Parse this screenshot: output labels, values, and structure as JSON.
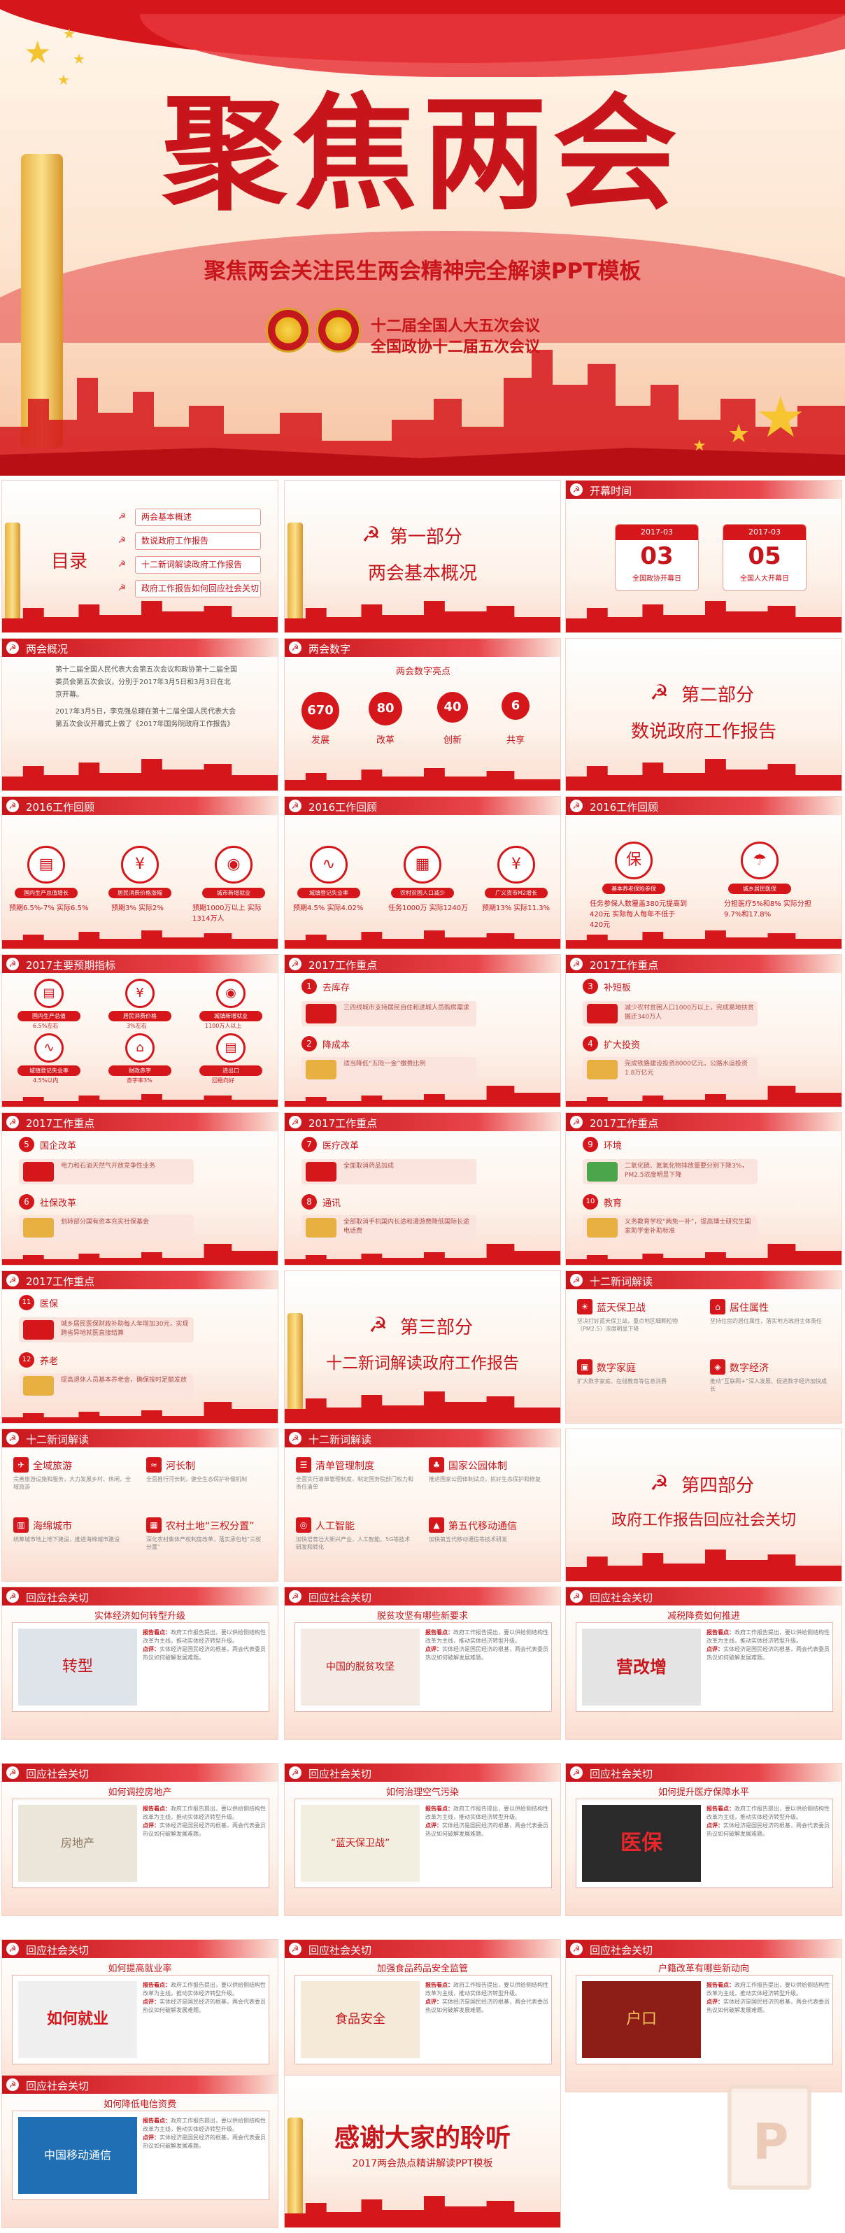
{
  "cover": {
    "title": "聚焦两会",
    "subtitle": "聚焦两会关注民生两会精神完全解读PPT模板",
    "meeting_1": "十二届全国人大五次会议",
    "meeting_2": "全国政协十二届五次会议"
  },
  "toc": {
    "title": "目录",
    "items": [
      "两会基本概述",
      "数说政府工作报告",
      "十二新词解读政府工作报告",
      "政府工作报告如何回应社会关切"
    ]
  },
  "part1": {
    "part": "第一部分",
    "name": "两会基本概况"
  },
  "opening": {
    "header": "开幕时间",
    "cal1": {
      "top": "2017-03",
      "num": "03",
      "label": "全国政协开幕日"
    },
    "cal2": {
      "top": "2017-03",
      "num": "05",
      "label": "全国人大开幕日"
    }
  },
  "overview": {
    "header": "两会概况",
    "text_1": "第十二届全国人民代表大会第五次会议和政协第十二届全国委员会第五次会议，分别于2017年3月5日和3月3日在北京开幕。",
    "text_2": "2017年3月5日，李克强总理在第十二届全国人民代表大会第五次会议开幕式上做了《2017年国务院政府工作报告》"
  },
  "numbers": {
    "header": "两会数字",
    "heading": "两会数字亮点",
    "items": [
      {
        "num": "670",
        "label": "发展"
      },
      {
        "num": "80",
        "label": "改革"
      },
      {
        "num": "40",
        "label": "创新"
      },
      {
        "num": "6",
        "label": "共享"
      }
    ]
  },
  "part2": {
    "part": "第二部分",
    "name": "数说政府工作报告"
  },
  "review1": {
    "header": "2016工作回顾",
    "items": [
      {
        "icon": "▤",
        "pill": "国内生产总值增长",
        "stat": "预期6.5%-7% 实际6.5%"
      },
      {
        "icon": "¥",
        "pill": "居民消费价格涨幅",
        "stat": "预期3% 实际2%"
      },
      {
        "icon": "◉",
        "pill": "城市新增就业",
        "stat": "预期1000万以上 实际1314万人"
      }
    ]
  },
  "review2": {
    "header": "2016工作回顾",
    "items": [
      {
        "icon": "∿",
        "pill": "城镇登记失业率",
        "stat": "预期4.5% 实际4.02%"
      },
      {
        "icon": "▦",
        "pill": "农村贫困人口减少",
        "stat": "任务1000万 实际1240万"
      },
      {
        "icon": "¥",
        "pill": "广义货币M2增长",
        "stat": "预期13% 实际11.3%"
      }
    ]
  },
  "review3": {
    "header": "2016工作回顾",
    "items": [
      {
        "icon": "保",
        "pill": "基本养老保险参保",
        "stat": "任务参保人数覆盖380元提高到420元 实际每人每年不低于420元"
      },
      {
        "icon": "☂",
        "pill": "城乡居民医保",
        "stat": "分担医疗5%和8% 实际分担9.7%和17.8%"
      }
    ]
  },
  "targets": {
    "header": "2017主要预期指标",
    "items": [
      {
        "icon": "▤",
        "pill": "国内生产总值",
        "stat": "6.5%左右"
      },
      {
        "icon": "¥",
        "pill": "居民消费价格",
        "stat": "3%左右"
      },
      {
        "icon": "◉",
        "pill": "城镇新增就业",
        "stat": "1100万人以上"
      },
      {
        "icon": "∿",
        "pill": "城镇登记失业率",
        "stat": "4.5%以内"
      },
      {
        "icon": "⌂",
        "pill": "财政赤字",
        "stat": "赤字率3%"
      },
      {
        "icon": "▤",
        "pill": "进出口",
        "stat": "回稳向好"
      }
    ]
  },
  "key1": {
    "header": "2017工作重点",
    "items": [
      {
        "num": "1",
        "label": "去库存",
        "text": "三四线城市支持居民自住和进城人员购房需求"
      },
      {
        "num": "2",
        "label": "降成本",
        "text": "适当降低“五险一金”缴费比例"
      }
    ]
  },
  "key2": {
    "header": "2017工作重点",
    "items": [
      {
        "num": "3",
        "label": "补短板",
        "text": "减少农村贫困人口1000万以上，完成易地扶贫搬迁340万人"
      },
      {
        "num": "4",
        "label": "扩大投资",
        "text": "完成铁路建设投资8000亿元，公路水运投资1.8万亿元"
      }
    ]
  },
  "key3": {
    "header": "2017工作重点",
    "items": [
      {
        "num": "5",
        "label": "国企改革",
        "text": "电力和石油天然气开放竞争性业务"
      },
      {
        "num": "6",
        "label": "社保改革",
        "text": "划转部分国有资本充实社保基金"
      }
    ]
  },
  "key4": {
    "header": "2017工作重点",
    "items": [
      {
        "num": "7",
        "label": "医疗改革",
        "text": "全面取消药品加成"
      },
      {
        "num": "8",
        "label": "通讯",
        "text": "全部取消手机国内长途和漫游费降低国际长途电话费"
      }
    ]
  },
  "key5": {
    "header": "2017工作重点",
    "items": [
      {
        "num": "9",
        "label": "环境",
        "text": "二氧化硫、氮氧化物排放量要分别下降3%，PM2.5浓度明显下降"
      },
      {
        "num": "10",
        "label": "教育",
        "text": "义务教育学校“两免一补”，提高博士研究生国家助学金补助标准"
      }
    ]
  },
  "key6": {
    "header": "2017工作重点",
    "items": [
      {
        "num": "11",
        "label": "医保",
        "text": "城乡居民医保财政补助每人年增加30元，实现跨省异地就医直接结算"
      },
      {
        "num": "12",
        "label": "养老",
        "text": "提高退休人员基本养老金，确保按时足额发放"
      }
    ]
  },
  "part3": {
    "part": "第三部分",
    "name": "十二新词解读政府工作报告"
  },
  "words1": {
    "header": "十二新词解读",
    "items": [
      {
        "label": "蓝天保卫战",
        "text": "坚决打好蓝天保卫战，重点地区细颗粒物（PM2.5）浓度明显下降"
      },
      {
        "label": "居住属性",
        "text": "坚持住房的居住属性，落实地方政府主体责任"
      },
      {
        "label": "数字家庭",
        "text": "扩大数字家庭、在线教育等信息消费"
      },
      {
        "label": "数字经济",
        "text": "推动“互联网+”深入发展、促进数字经济加快成长"
      }
    ]
  },
  "words2": {
    "header": "十二新词解读",
    "items": [
      {
        "label": "全域旅游",
        "text": "完善旅游设施和服务，大力发展乡村、休闲、全域旅游"
      },
      {
        "label": "河长制",
        "text": "全面推行河长制，健全生态保护补偿机制"
      },
      {
        "label": "海绵城市",
        "text": "统筹城市地上地下建设，推进海绵城市建设"
      },
      {
        "label": "农村土地“三权分置”",
        "text": "深化农村集体产权制度改革，落实承包地“三权分置”"
      }
    ]
  },
  "words3": {
    "header": "十二新词解读",
    "items": [
      {
        "label": "清单管理制度",
        "text": "全面实行清单管理制度，制定国务院部门权力和责任清单"
      },
      {
        "label": "国家公园体制",
        "text": "推进国家公园体制试点，抓好生态保护和修复"
      },
      {
        "label": "人工智能",
        "text": "加快培育壮大新兴产业，人工智能、5G等技术研发和转化"
      },
      {
        "label": "第五代移动通信",
        "text": "加快第五代移动通信等技术研发"
      }
    ]
  },
  "part4": {
    "part": "第四部分",
    "name": "政府工作报告回应社会关切"
  },
  "concerns": [
    {
      "header": "回应社会关切",
      "heading": "实体经济如何转型升级",
      "picture": "转型"
    },
    {
      "header": "回应社会关切",
      "heading": "脱贫攻坚有哪些新要求",
      "picture": "中国的脱贫攻坚"
    },
    {
      "header": "回应社会关切",
      "heading": "减税降费如何推进",
      "picture": "营改增"
    },
    {
      "header": "回应社会关切",
      "heading": "如何调控房地产",
      "picture": "房地产"
    },
    {
      "header": "回应社会关切",
      "heading": "如何治理空气污染",
      "picture": "“蓝天保卫战”"
    },
    {
      "header": "回应社会关切",
      "heading": "如何提升医疗保障水平",
      "picture": "医保"
    },
    {
      "header": "回应社会关切",
      "heading": "如何提高就业率",
      "picture": "如何就业"
    },
    {
      "header": "回应社会关切",
      "heading": "加强食品药品安全监管",
      "picture": "食品安全"
    },
    {
      "header": "回应社会关切",
      "heading": "户籍改革有哪些新动向",
      "picture": "户口"
    },
    {
      "header": "回应社会关切",
      "heading": "如何降低电信资费",
      "picture": "中国移动通信"
    }
  ],
  "concern_text": {
    "label_a": "报告看点：",
    "body_a": "政府工作报告提出，要以供给侧结构性改革为主线，推动实体经济转型升级。",
    "label_b": "点评：",
    "body_b": "实体经济是国民经济的根基，两会代表委员热议如何破解发展难题。"
  },
  "thanks": {
    "title": "感谢大家的聆听",
    "subtitle": "2017两会热点精讲解读PPT模板"
  }
}
